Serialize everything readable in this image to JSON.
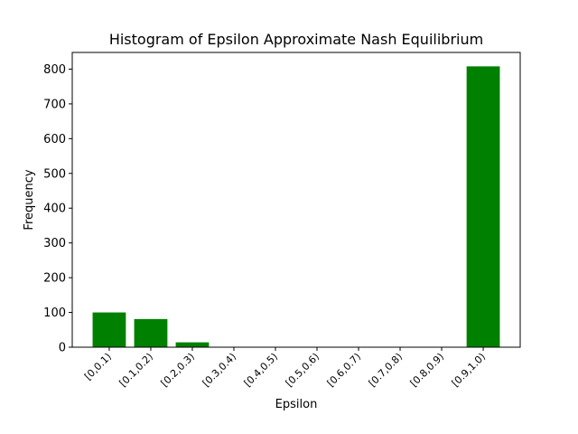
{
  "chart_data": {
    "type": "bar",
    "title": "Histogram of Epsilon Approximate Nash Equilibrium",
    "xlabel": "Epsilon",
    "ylabel": "Frequency",
    "categories": [
      "[0,0.1)",
      "[0.1,0.2)",
      "[0.2,0.3)",
      "[0.3,0.4)",
      "[0.4,0.5)",
      "[0.5,0.6)",
      "[0.6,0.7)",
      "[0.7,0.8)",
      "[0.8,0.9)",
      "[0.9,1.0)"
    ],
    "values": [
      100,
      81,
      14,
      0,
      0,
      0,
      0,
      0,
      0,
      808
    ],
    "ylim": [
      0,
      848
    ],
    "yticks": [
      0,
      100,
      200,
      300,
      400,
      500,
      600,
      700,
      800
    ],
    "bar_color": "#008000",
    "grid": false
  }
}
